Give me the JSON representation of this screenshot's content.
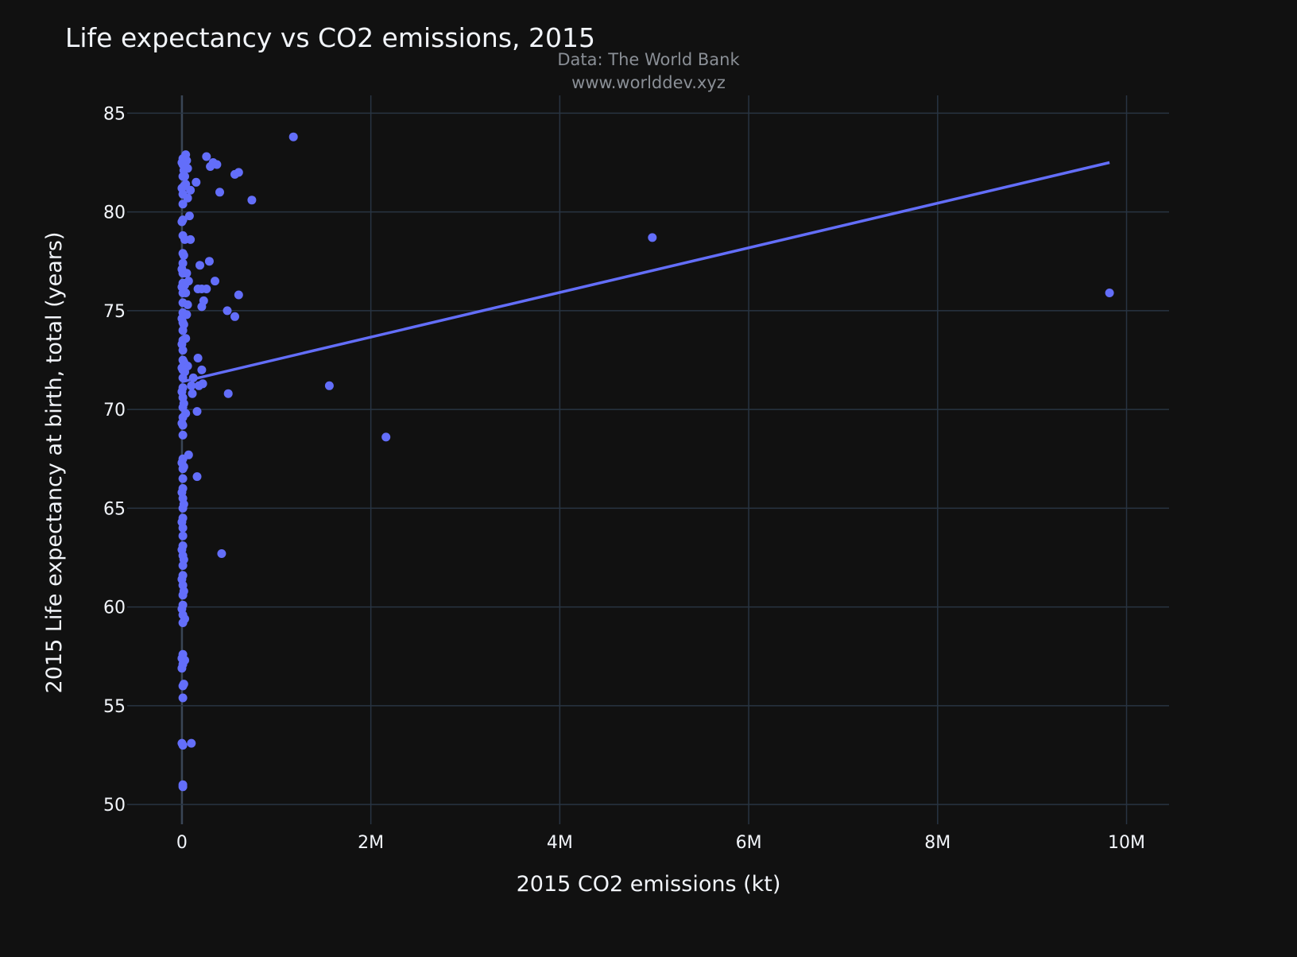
{
  "chart_data": {
    "type": "scatter",
    "title": "Life expectancy vs CO2 emissions, 2015",
    "annotations": [
      "Data: The World Bank",
      "www.worlddev.xyz"
    ],
    "xlabel": "2015 CO2 emissions (kt)",
    "ylabel": "2015 Life expectancy at birth, total (years)",
    "xlim": [
      -580000,
      10450000
    ],
    "ylim": [
      49,
      85.9
    ],
    "x_ticks": [
      0,
      2000000,
      4000000,
      6000000,
      8000000,
      10000000
    ],
    "x_tick_labels": [
      "0",
      "2M",
      "4M",
      "6M",
      "8M",
      "10M"
    ],
    "y_ticks": [
      50,
      55,
      60,
      65,
      70,
      75,
      80,
      85
    ],
    "y_tick_labels": [
      "50",
      "55",
      "60",
      "65",
      "70",
      "75",
      "80",
      "85"
    ],
    "grid": true,
    "colors": {
      "background": "#111111",
      "grid": "#283442",
      "marker": "#636efa",
      "text": "#f2f5fa",
      "annotation": "#8a8f96"
    },
    "series": [
      {
        "mode": "markers",
        "points": [
          [
            1180000,
            83.8
          ],
          [
            4980000,
            78.7
          ],
          [
            9820000,
            75.9
          ],
          [
            1560000,
            71.2
          ],
          [
            2160000,
            68.6
          ],
          [
            420000,
            62.7
          ],
          [
            260000,
            82.8
          ],
          [
            330000,
            82.5
          ],
          [
            370000,
            82.4
          ],
          [
            300000,
            82.3
          ],
          [
            560000,
            81.9
          ],
          [
            600000,
            82.0
          ],
          [
            150000,
            81.5
          ],
          [
            400000,
            81.0
          ],
          [
            740000,
            80.6
          ],
          [
            290000,
            77.5
          ],
          [
            190000,
            77.3
          ],
          [
            350000,
            76.5
          ],
          [
            170000,
            76.1
          ],
          [
            210000,
            76.1
          ],
          [
            260000,
            76.1
          ],
          [
            600000,
            75.8
          ],
          [
            230000,
            75.5
          ],
          [
            210000,
            75.2
          ],
          [
            480000,
            75.0
          ],
          [
            560000,
            74.7
          ],
          [
            170000,
            72.6
          ],
          [
            210000,
            72.0
          ],
          [
            220000,
            71.3
          ],
          [
            180000,
            71.2
          ],
          [
            490000,
            70.8
          ],
          [
            160000,
            69.9
          ],
          [
            120000,
            71.6
          ],
          [
            110000,
            70.8
          ],
          [
            100000,
            71.2
          ],
          [
            70000,
            67.7
          ],
          [
            160000,
            66.6
          ],
          [
            100000,
            53.1
          ],
          [
            90000,
            78.6
          ],
          [
            80000,
            79.8
          ],
          [
            60000,
            80.7
          ],
          [
            90000,
            81.1
          ],
          [
            50000,
            74.8
          ],
          [
            40000,
            73.6
          ],
          [
            30000,
            72.3
          ],
          [
            60000,
            72.2
          ],
          [
            50000,
            76.9
          ],
          [
            70000,
            76.5
          ],
          [
            40000,
            75.9
          ],
          [
            60000,
            75.3
          ],
          [
            40000,
            82.9
          ],
          [
            50000,
            82.6
          ],
          [
            40000,
            81.4
          ],
          [
            30000,
            81.8
          ],
          [
            60000,
            82.2
          ],
          [
            20000,
            77.8
          ],
          [
            30000,
            78.6
          ],
          [
            30000,
            76.3
          ],
          [
            20000,
            74.3
          ],
          [
            20000,
            72.4
          ],
          [
            30000,
            71.9
          ],
          [
            20000,
            70.3
          ],
          [
            40000,
            69.8
          ],
          [
            30000,
            59.4
          ],
          [
            10000,
            82.7
          ],
          [
            10000,
            82.4
          ],
          [
            20000,
            82.1
          ],
          [
            10000,
            81.8
          ],
          [
            20000,
            81.3
          ],
          [
            10000,
            80.9
          ],
          [
            10000,
            80.4
          ],
          [
            10000,
            79.6
          ],
          [
            10000,
            78.8
          ],
          [
            10000,
            77.9
          ],
          [
            10000,
            77.4
          ],
          [
            10000,
            76.9
          ],
          [
            10000,
            76.4
          ],
          [
            10000,
            75.9
          ],
          [
            10000,
            75.4
          ],
          [
            10000,
            74.9
          ],
          [
            10000,
            74.4
          ],
          [
            10000,
            74.0
          ],
          [
            10000,
            73.5
          ],
          [
            10000,
            73.0
          ],
          [
            10000,
            72.5
          ],
          [
            10000,
            72.0
          ],
          [
            10000,
            71.6
          ],
          [
            10000,
            71.1
          ],
          [
            10000,
            70.6
          ],
          [
            10000,
            70.1
          ],
          [
            10000,
            69.6
          ],
          [
            10000,
            69.2
          ],
          [
            10000,
            68.7
          ],
          [
            10000,
            67.5
          ],
          [
            10000,
            67.0
          ],
          [
            10000,
            66.5
          ],
          [
            10000,
            66.0
          ],
          [
            10000,
            65.5
          ],
          [
            10000,
            65.0
          ],
          [
            10000,
            64.5
          ],
          [
            10000,
            64.0
          ],
          [
            10000,
            63.6
          ],
          [
            10000,
            63.1
          ],
          [
            10000,
            62.6
          ],
          [
            10000,
            62.1
          ],
          [
            10000,
            61.6
          ],
          [
            10000,
            61.1
          ],
          [
            10000,
            60.6
          ],
          [
            10000,
            60.1
          ],
          [
            10000,
            59.6
          ],
          [
            10000,
            59.2
          ],
          [
            10000,
            57.6
          ],
          [
            10000,
            57.1
          ],
          [
            10000,
            56.0
          ],
          [
            10000,
            55.4
          ],
          [
            10000,
            53.0
          ],
          [
            10000,
            51.0
          ],
          [
            10000,
            50.9
          ],
          [
            0,
            82.5
          ],
          [
            0,
            81.2
          ],
          [
            0,
            79.5
          ],
          [
            0,
            77.1
          ],
          [
            0,
            76.2
          ],
          [
            0,
            74.6
          ],
          [
            0,
            73.3
          ],
          [
            0,
            72.1
          ],
          [
            0,
            70.9
          ],
          [
            0,
            69.3
          ],
          [
            0,
            67.3
          ],
          [
            0,
            65.8
          ],
          [
            0,
            64.3
          ],
          [
            0,
            62.9
          ],
          [
            0,
            61.4
          ],
          [
            0,
            59.9
          ],
          [
            0,
            57.4
          ],
          [
            0,
            56.9
          ],
          [
            0,
            53.1
          ],
          [
            20000,
            67.1
          ],
          [
            20000,
            65.2
          ],
          [
            20000,
            62.4
          ],
          [
            20000,
            60.8
          ],
          [
            30000,
            57.3
          ],
          [
            20000,
            56.1
          ]
        ]
      },
      {
        "mode": "line",
        "points": [
          [
            0,
            71.4
          ],
          [
            9820000,
            82.5
          ]
        ]
      }
    ]
  }
}
